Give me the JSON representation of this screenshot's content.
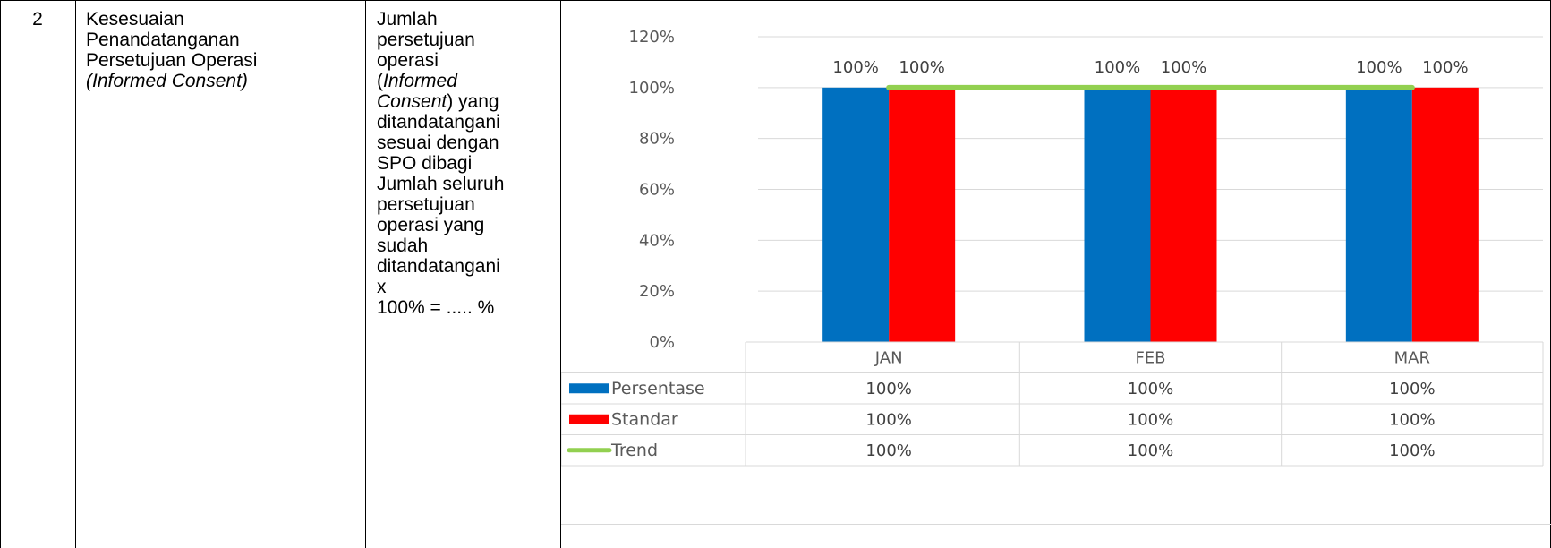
{
  "row": {
    "number": "2",
    "title_lines": [
      "Kesesuaian",
      "Penandatanganan",
      "Persetujuan Operasi"
    ],
    "title_italic": "(Informed Consent)",
    "formula_lines": [
      {
        "text": "Jumlah",
        "italic": false
      },
      {
        "text": "persetujuan",
        "italic": false
      },
      {
        "text": "operasi",
        "italic": false
      },
      {
        "text": "(Informed",
        "italic": true
      },
      {
        "text": "Consent) yang",
        "italic": true
      },
      {
        "text": "ditandatangani",
        "italic": false
      },
      {
        "text": "sesuai dengan",
        "italic": false
      },
      {
        "text": "SPO dibagi",
        "italic": false
      },
      {
        "text": "Jumlah seluruh",
        "italic": false
      },
      {
        "text": "persetujuan",
        "italic": false
      },
      {
        "text": "operasi yang",
        "italic": false
      },
      {
        "text": "sudah",
        "italic": false
      },
      {
        "text": "ditandatangani",
        "italic": false
      },
      {
        "text": "x",
        "italic": false
      },
      {
        "text": "100% = ..... %",
        "italic": false
      }
    ]
  },
  "chart_data": {
    "type": "bar",
    "categories": [
      "JAN",
      "FEB",
      "MAR"
    ],
    "ylim": [
      0,
      120
    ],
    "yticks": [
      "0%",
      "20%",
      "40%",
      "60%",
      "80%",
      "100%",
      "120%"
    ],
    "series": [
      {
        "name": "Persentase",
        "kind": "bar",
        "color": "#0070c0",
        "values": [
          100,
          100,
          100
        ],
        "labels": [
          "100%",
          "100%",
          "100%"
        ]
      },
      {
        "name": "Standar",
        "kind": "bar",
        "color": "#ff0000",
        "values": [
          100,
          100,
          100
        ],
        "labels": [
          "100%",
          "100%",
          "100%"
        ]
      },
      {
        "name": "Trend",
        "kind": "line",
        "color": "#92d050",
        "values": [
          100,
          100,
          100
        ],
        "labels": [
          "100%",
          "100%",
          "100%"
        ]
      }
    ],
    "grid": true,
    "legend": "data-table"
  }
}
